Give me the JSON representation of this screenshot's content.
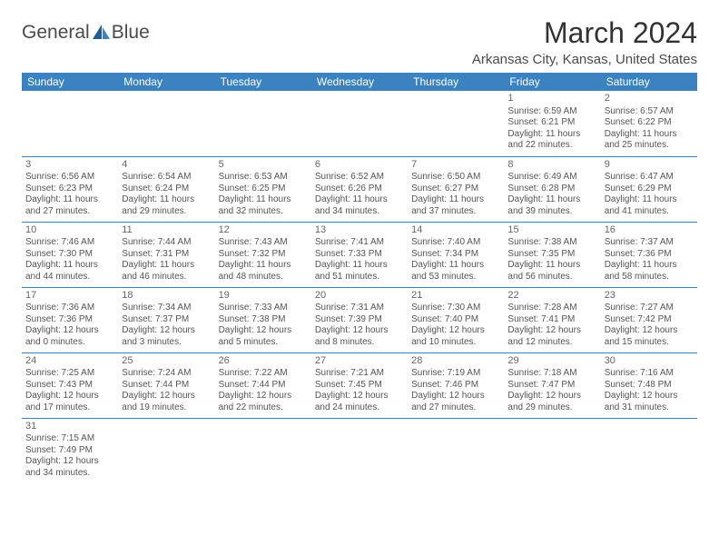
{
  "logo": {
    "text_a": "General",
    "text_b": "Blue"
  },
  "title": "March 2024",
  "location": "Arkansas City, Kansas, United States",
  "colors": {
    "header_bg": "#3b83c0",
    "header_text": "#ffffff",
    "rule": "#3b83c0",
    "body_text": "#555555"
  },
  "day_headers": [
    "Sunday",
    "Monday",
    "Tuesday",
    "Wednesday",
    "Thursday",
    "Friday",
    "Saturday"
  ],
  "weeks": [
    [
      null,
      null,
      null,
      null,
      null,
      {
        "n": "1",
        "sr": "Sunrise: 6:59 AM",
        "ss": "Sunset: 6:21 PM",
        "d1": "Daylight: 11 hours",
        "d2": "and 22 minutes."
      },
      {
        "n": "2",
        "sr": "Sunrise: 6:57 AM",
        "ss": "Sunset: 6:22 PM",
        "d1": "Daylight: 11 hours",
        "d2": "and 25 minutes."
      }
    ],
    [
      {
        "n": "3",
        "sr": "Sunrise: 6:56 AM",
        "ss": "Sunset: 6:23 PM",
        "d1": "Daylight: 11 hours",
        "d2": "and 27 minutes."
      },
      {
        "n": "4",
        "sr": "Sunrise: 6:54 AM",
        "ss": "Sunset: 6:24 PM",
        "d1": "Daylight: 11 hours",
        "d2": "and 29 minutes."
      },
      {
        "n": "5",
        "sr": "Sunrise: 6:53 AM",
        "ss": "Sunset: 6:25 PM",
        "d1": "Daylight: 11 hours",
        "d2": "and 32 minutes."
      },
      {
        "n": "6",
        "sr": "Sunrise: 6:52 AM",
        "ss": "Sunset: 6:26 PM",
        "d1": "Daylight: 11 hours",
        "d2": "and 34 minutes."
      },
      {
        "n": "7",
        "sr": "Sunrise: 6:50 AM",
        "ss": "Sunset: 6:27 PM",
        "d1": "Daylight: 11 hours",
        "d2": "and 37 minutes."
      },
      {
        "n": "8",
        "sr": "Sunrise: 6:49 AM",
        "ss": "Sunset: 6:28 PM",
        "d1": "Daylight: 11 hours",
        "d2": "and 39 minutes."
      },
      {
        "n": "9",
        "sr": "Sunrise: 6:47 AM",
        "ss": "Sunset: 6:29 PM",
        "d1": "Daylight: 11 hours",
        "d2": "and 41 minutes."
      }
    ],
    [
      {
        "n": "10",
        "sr": "Sunrise: 7:46 AM",
        "ss": "Sunset: 7:30 PM",
        "d1": "Daylight: 11 hours",
        "d2": "and 44 minutes."
      },
      {
        "n": "11",
        "sr": "Sunrise: 7:44 AM",
        "ss": "Sunset: 7:31 PM",
        "d1": "Daylight: 11 hours",
        "d2": "and 46 minutes."
      },
      {
        "n": "12",
        "sr": "Sunrise: 7:43 AM",
        "ss": "Sunset: 7:32 PM",
        "d1": "Daylight: 11 hours",
        "d2": "and 48 minutes."
      },
      {
        "n": "13",
        "sr": "Sunrise: 7:41 AM",
        "ss": "Sunset: 7:33 PM",
        "d1": "Daylight: 11 hours",
        "d2": "and 51 minutes."
      },
      {
        "n": "14",
        "sr": "Sunrise: 7:40 AM",
        "ss": "Sunset: 7:34 PM",
        "d1": "Daylight: 11 hours",
        "d2": "and 53 minutes."
      },
      {
        "n": "15",
        "sr": "Sunrise: 7:38 AM",
        "ss": "Sunset: 7:35 PM",
        "d1": "Daylight: 11 hours",
        "d2": "and 56 minutes."
      },
      {
        "n": "16",
        "sr": "Sunrise: 7:37 AM",
        "ss": "Sunset: 7:36 PM",
        "d1": "Daylight: 11 hours",
        "d2": "and 58 minutes."
      }
    ],
    [
      {
        "n": "17",
        "sr": "Sunrise: 7:36 AM",
        "ss": "Sunset: 7:36 PM",
        "d1": "Daylight: 12 hours",
        "d2": "and 0 minutes."
      },
      {
        "n": "18",
        "sr": "Sunrise: 7:34 AM",
        "ss": "Sunset: 7:37 PM",
        "d1": "Daylight: 12 hours",
        "d2": "and 3 minutes."
      },
      {
        "n": "19",
        "sr": "Sunrise: 7:33 AM",
        "ss": "Sunset: 7:38 PM",
        "d1": "Daylight: 12 hours",
        "d2": "and 5 minutes."
      },
      {
        "n": "20",
        "sr": "Sunrise: 7:31 AM",
        "ss": "Sunset: 7:39 PM",
        "d1": "Daylight: 12 hours",
        "d2": "and 8 minutes."
      },
      {
        "n": "21",
        "sr": "Sunrise: 7:30 AM",
        "ss": "Sunset: 7:40 PM",
        "d1": "Daylight: 12 hours",
        "d2": "and 10 minutes."
      },
      {
        "n": "22",
        "sr": "Sunrise: 7:28 AM",
        "ss": "Sunset: 7:41 PM",
        "d1": "Daylight: 12 hours",
        "d2": "and 12 minutes."
      },
      {
        "n": "23",
        "sr": "Sunrise: 7:27 AM",
        "ss": "Sunset: 7:42 PM",
        "d1": "Daylight: 12 hours",
        "d2": "and 15 minutes."
      }
    ],
    [
      {
        "n": "24",
        "sr": "Sunrise: 7:25 AM",
        "ss": "Sunset: 7:43 PM",
        "d1": "Daylight: 12 hours",
        "d2": "and 17 minutes."
      },
      {
        "n": "25",
        "sr": "Sunrise: 7:24 AM",
        "ss": "Sunset: 7:44 PM",
        "d1": "Daylight: 12 hours",
        "d2": "and 19 minutes."
      },
      {
        "n": "26",
        "sr": "Sunrise: 7:22 AM",
        "ss": "Sunset: 7:44 PM",
        "d1": "Daylight: 12 hours",
        "d2": "and 22 minutes."
      },
      {
        "n": "27",
        "sr": "Sunrise: 7:21 AM",
        "ss": "Sunset: 7:45 PM",
        "d1": "Daylight: 12 hours",
        "d2": "and 24 minutes."
      },
      {
        "n": "28",
        "sr": "Sunrise: 7:19 AM",
        "ss": "Sunset: 7:46 PM",
        "d1": "Daylight: 12 hours",
        "d2": "and 27 minutes."
      },
      {
        "n": "29",
        "sr": "Sunrise: 7:18 AM",
        "ss": "Sunset: 7:47 PM",
        "d1": "Daylight: 12 hours",
        "d2": "and 29 minutes."
      },
      {
        "n": "30",
        "sr": "Sunrise: 7:16 AM",
        "ss": "Sunset: 7:48 PM",
        "d1": "Daylight: 12 hours",
        "d2": "and 31 minutes."
      }
    ],
    [
      {
        "n": "31",
        "sr": "Sunrise: 7:15 AM",
        "ss": "Sunset: 7:49 PM",
        "d1": "Daylight: 12 hours",
        "d2": "and 34 minutes."
      },
      null,
      null,
      null,
      null,
      null,
      null
    ]
  ]
}
